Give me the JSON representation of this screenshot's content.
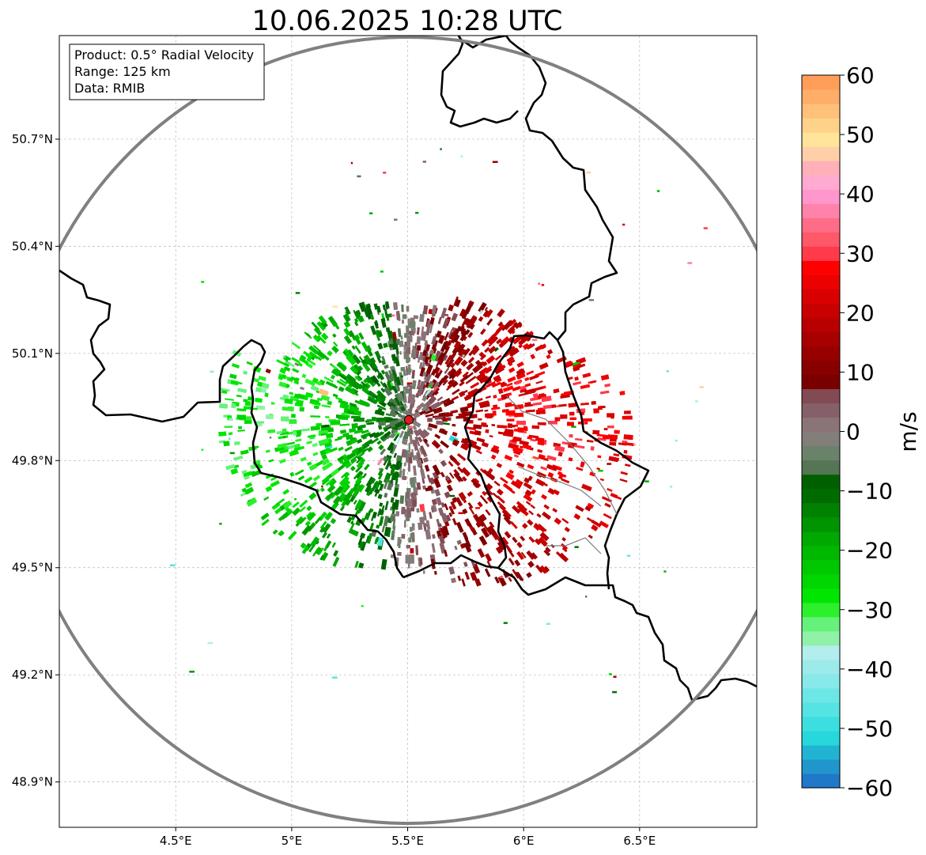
{
  "title": "10.06.2025 10:28 UTC",
  "info_box": {
    "line1": "Product: 0.5° Radial Velocity",
    "line2": "Range: 125 km",
    "line3": "Data: RMIB"
  },
  "map": {
    "lon_range": [
      4.0,
      7.0
    ],
    "lat_range": [
      48.8,
      50.99
    ],
    "x_ticks": [
      {
        "value": 4.5,
        "label": "4.5°E"
      },
      {
        "value": 5.0,
        "label": "5°E"
      },
      {
        "value": 5.5,
        "label": "5.5°E"
      },
      {
        "value": 6.0,
        "label": "6°E"
      },
      {
        "value": 6.5,
        "label": "6.5°E"
      }
    ],
    "y_ticks": [
      {
        "value": 48.9,
        "label": "48.9°N"
      },
      {
        "value": 49.2,
        "label": "49.2°N"
      },
      {
        "value": 49.5,
        "label": "49.5°N"
      },
      {
        "value": 49.8,
        "label": "49.8°N"
      },
      {
        "value": 50.1,
        "label": "50.1°N"
      },
      {
        "value": 50.4,
        "label": "50.4°N"
      },
      {
        "value": 50.7,
        "label": "50.7°N"
      }
    ],
    "radar_site": {
      "lon": 5.505,
      "lat": 49.914
    },
    "gridlines": true,
    "range_ring_color": "#808080",
    "border_color": "#000000"
  },
  "colorbar": {
    "label": "m/s",
    "min": -60,
    "max": 60,
    "ticks": [
      {
        "value": 60,
        "label": "60"
      },
      {
        "value": 50,
        "label": "50"
      },
      {
        "value": 40,
        "label": "40"
      },
      {
        "value": 30,
        "label": "30"
      },
      {
        "value": 20,
        "label": "20"
      },
      {
        "value": 10,
        "label": "10"
      },
      {
        "value": 0,
        "label": "0"
      },
      {
        "value": -10,
        "label": "−10"
      },
      {
        "value": -20,
        "label": "−20"
      },
      {
        "value": -30,
        "label": "−30"
      },
      {
        "value": -40,
        "label": "−40"
      },
      {
        "value": -50,
        "label": "−50"
      },
      {
        "value": -60,
        "label": "−60"
      }
    ],
    "color_steps": [
      "#1f78c8",
      "#2196cc",
      "#21b4d2",
      "#28d7dc",
      "#3cdfe0",
      "#55e3e3",
      "#6de6e6",
      "#87e9e9",
      "#9ceaea",
      "#b3eded",
      "#8ff2a8",
      "#66f27a",
      "#2cf02c",
      "#00e600",
      "#00d600",
      "#00c800",
      "#00b800",
      "#00a800",
      "#009400",
      "#008200",
      "#006c00",
      "#006000",
      "#557555",
      "#6a826a",
      "#827e7a",
      "#8a7478",
      "#866068",
      "#824a52",
      "#7a0000",
      "#880000",
      "#980000",
      "#a80000",
      "#b80000",
      "#c80000",
      "#d80000",
      "#ec0000",
      "#ff0000",
      "#ff3a4a",
      "#ff5868",
      "#ff6c88",
      "#ff82aa",
      "#ff96cc",
      "#ffaad0",
      "#ffb0b8",
      "#ffd0a8",
      "#ffe49a",
      "#ffd28a",
      "#ffc07a",
      "#ffae6a",
      "#ff9e58"
    ]
  }
}
